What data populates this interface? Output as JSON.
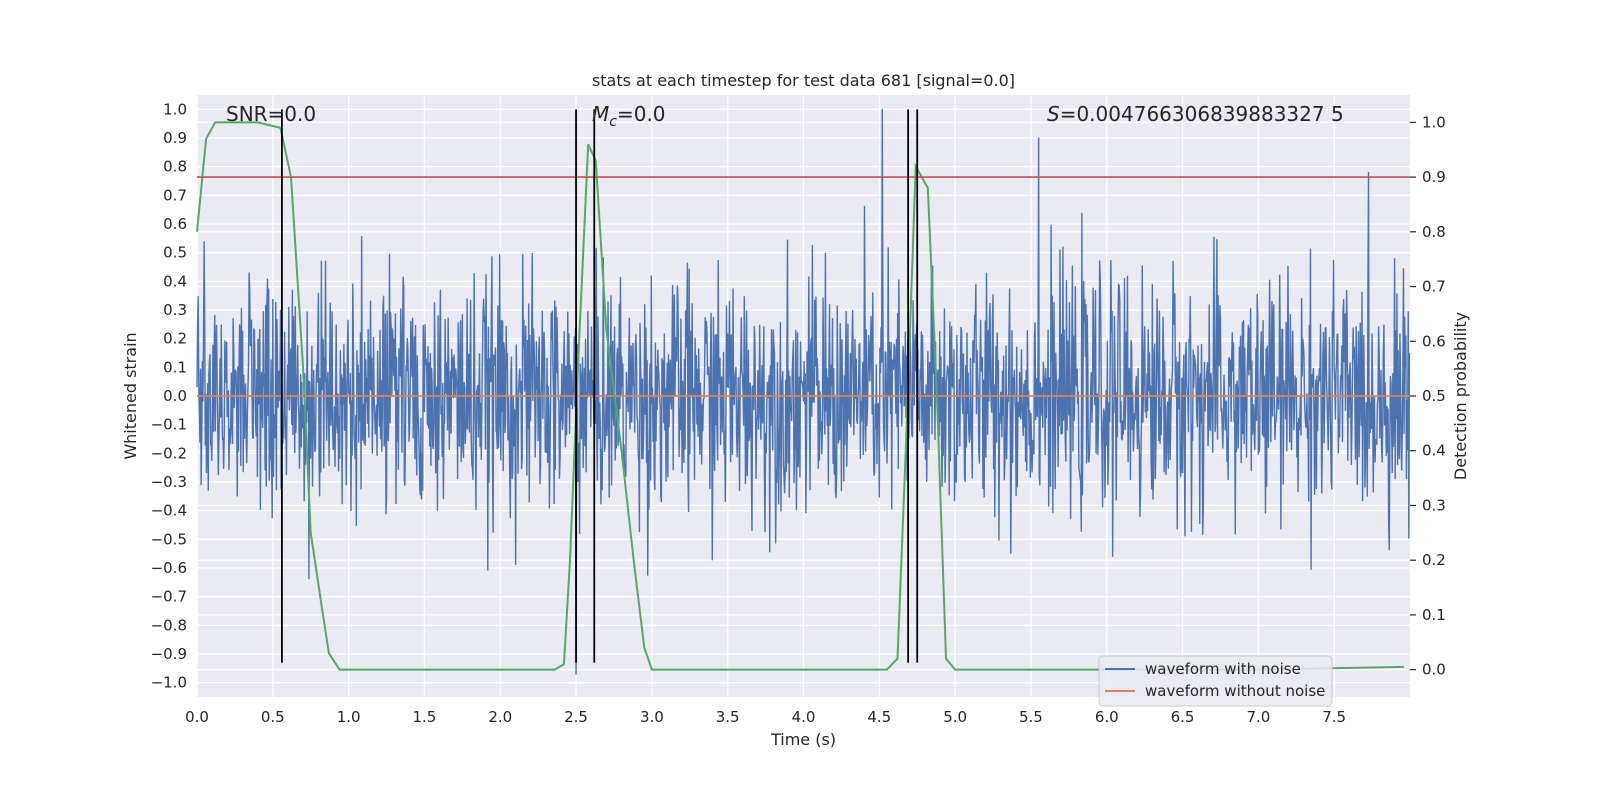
{
  "chart_data": {
    "type": "line",
    "title": "stats at each timestep for test data 681 [signal=0.0]",
    "xlabel": "Time (s)",
    "ylabel_left": "Whitened strain",
    "ylabel_right": "Detection probability",
    "xlim": [
      0,
      8
    ],
    "ylim_left": [
      -1.05,
      1.05
    ],
    "ylim_right": [
      -0.05,
      1.05
    ],
    "grid": true,
    "background": "#eaeaf2",
    "xticks": [
      "0.0",
      "0.5",
      "1.0",
      "1.5",
      "2.0",
      "2.5",
      "3.0",
      "3.5",
      "4.0",
      "4.5",
      "5.0",
      "5.5",
      "6.0",
      "6.5",
      "7.0",
      "7.5"
    ],
    "yticks_left": [
      "1.0",
      "0.9",
      "0.8",
      "0.7",
      "0.6",
      "0.5",
      "0.4",
      "0.3",
      "0.2",
      "0.1",
      "0.0",
      "−0.1",
      "−0.2",
      "−0.3",
      "−0.4",
      "−0.5",
      "−0.6",
      "−0.7",
      "−0.8",
      "−0.9",
      "−1.0"
    ],
    "yticks_right": [
      "1.0",
      "0.9",
      "0.8",
      "0.7",
      "0.6",
      "0.5",
      "0.4",
      "0.3",
      "0.2",
      "0.1",
      "0.0"
    ],
    "annotations": {
      "snr": "SNR=0.0",
      "mc_symbol": "M",
      "mc_sub": "c",
      "mc_value": "=0.0",
      "s_symbol": "S",
      "s_value": "=0.004766306839883327 5"
    },
    "threshold": {
      "axis": "right",
      "value": 0.9,
      "color": "#c44e52"
    },
    "vertical_markers": {
      "x": [
        0.56,
        2.5,
        2.62,
        4.69,
        4.75
      ],
      "ymin": -0.93,
      "ymax": 1.0,
      "color": "#000000"
    },
    "series": [
      {
        "name": "waveform with noise",
        "axis": "left",
        "color": "#4c72b0",
        "kind": "noise",
        "n_samples": 2048,
        "sigma": 0.2,
        "x_range": [
          0,
          7.996
        ],
        "peaks": [
          [
            2.5,
            -0.97
          ],
          [
            4.52,
            1.0
          ],
          [
            5.55,
            0.9
          ]
        ]
      },
      {
        "name": "waveform without noise",
        "axis": "left",
        "color": "#dd8452",
        "x": [
          0,
          7.996
        ],
        "y": [
          0,
          0
        ]
      },
      {
        "axis": "right",
        "color": "#55a868",
        "x": [
          0.0,
          0.06,
          0.12,
          0.2,
          0.4,
          0.55,
          0.62,
          0.7,
          0.75,
          0.82,
          0.87,
          0.94,
          1.0,
          1.5,
          2.0,
          2.36,
          2.42,
          2.46,
          2.52,
          2.58,
          2.63,
          2.7,
          2.8,
          2.88,
          2.95,
          3.0,
          3.5,
          4.0,
          4.55,
          4.62,
          4.68,
          4.74,
          4.82,
          4.88,
          4.94,
          5.0,
          6.0,
          7.0,
          7.96
        ],
        "y": [
          0.8,
          0.97,
          1.0,
          1.0,
          1.0,
          0.99,
          0.9,
          0.55,
          0.25,
          0.12,
          0.03,
          0.0,
          0.0,
          0.0,
          0.0,
          0.0,
          0.01,
          0.2,
          0.6,
          0.96,
          0.93,
          0.62,
          0.4,
          0.2,
          0.04,
          0.0,
          0.0,
          0.0,
          0.0,
          0.02,
          0.44,
          0.92,
          0.88,
          0.5,
          0.02,
          0.0,
          0.0,
          0.0,
          0.005
        ]
      }
    ],
    "legend": {
      "placement": "lower-right",
      "entries": [
        "waveform with noise",
        "waveform without noise"
      ]
    }
  }
}
